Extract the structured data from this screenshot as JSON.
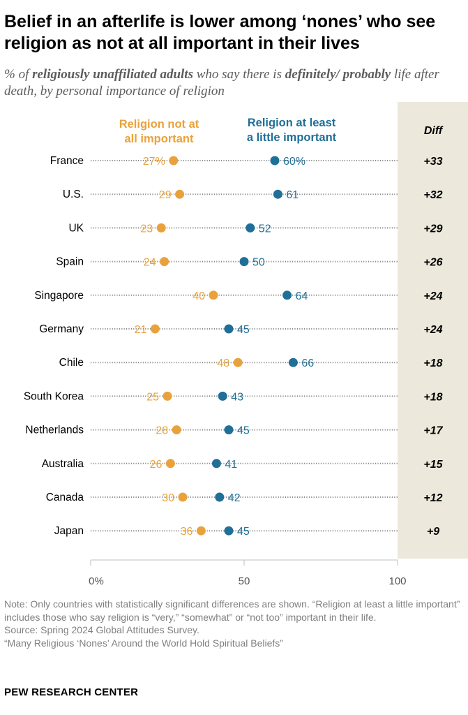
{
  "title": "Belief in an afterlife is lower among ‘nones’ who see religion as not at all important in their lives",
  "subtitle_parts": {
    "p1": "% of ",
    "b1": "religiously unaffiliated adults",
    "p2": " who say there is ",
    "b2": "definitely/ probably",
    "p3": " life after death, by personal importance of religion"
  },
  "notes": {
    "note": "Note: Only countries with statistically significant differences are shown. “Religion at least a little important” includes those who say religion is “very,” “somewhat” or “not too” important in their life.",
    "source": "Source: Spring 2024 Global Attitudes Survey.",
    "report": "“Many Religious ‘Nones’ Around the World Hold Spiritual Beliefs”",
    "brand": "PEW RESEARCH CENTER"
  },
  "chart_data": {
    "type": "dot",
    "xlim": [
      0,
      100
    ],
    "x_ticks": [
      "0%",
      "50",
      "100"
    ],
    "x_tick_values": [
      0,
      50,
      100
    ],
    "legend_orange_line1": "Religion not at",
    "legend_orange_line2": "all important",
    "legend_blue_line1": "Religion at least",
    "legend_blue_line2": "a little important",
    "diff_header": "Diff",
    "colors": {
      "orange": "#e9a23b",
      "blue": "#1f6f98",
      "diff_bg": "#ece9dc",
      "axis": "#bfbfbf",
      "dots": "#8a8a8a"
    },
    "series": [
      {
        "name": "Religion not at all important",
        "color": "orange"
      },
      {
        "name": "Religion at least a little important",
        "color": "blue"
      }
    ],
    "rows": [
      {
        "country": "France",
        "not_important": 27,
        "important": 60,
        "not_label": "27%",
        "imp_label": "60%",
        "diff": "+33"
      },
      {
        "country": "U.S.",
        "not_important": 29,
        "important": 61,
        "not_label": "29",
        "imp_label": "61",
        "diff": "+32"
      },
      {
        "country": "UK",
        "not_important": 23,
        "important": 52,
        "not_label": "23",
        "imp_label": "52",
        "diff": "+29"
      },
      {
        "country": "Spain",
        "not_important": 24,
        "important": 50,
        "not_label": "24",
        "imp_label": "50",
        "diff": "+26"
      },
      {
        "country": "Singapore",
        "not_important": 40,
        "important": 64,
        "not_label": "40",
        "imp_label": "64",
        "diff": "+24"
      },
      {
        "country": "Germany",
        "not_important": 21,
        "important": 45,
        "not_label": "21",
        "imp_label": "45",
        "diff": "+24"
      },
      {
        "country": "Chile",
        "not_important": 48,
        "important": 66,
        "not_label": "48",
        "imp_label": "66",
        "diff": "+18"
      },
      {
        "country": "South Korea",
        "not_important": 25,
        "important": 43,
        "not_label": "25",
        "imp_label": "43",
        "diff": "+18"
      },
      {
        "country": "Netherlands",
        "not_important": 28,
        "important": 45,
        "not_label": "28",
        "imp_label": "45",
        "diff": "+17"
      },
      {
        "country": "Australia",
        "not_important": 26,
        "important": 41,
        "not_label": "26",
        "imp_label": "41",
        "diff": "+15"
      },
      {
        "country": "Canada",
        "not_important": 30,
        "important": 42,
        "not_label": "30",
        "imp_label": "42",
        "diff": "+12"
      },
      {
        "country": "Japan",
        "not_important": 36,
        "important": 45,
        "not_label": "36",
        "imp_label": "45",
        "diff": "+9"
      }
    ]
  }
}
